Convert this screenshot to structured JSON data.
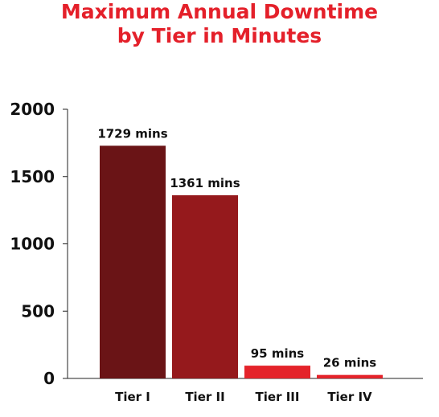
{
  "chart_data": {
    "type": "bar",
    "title_lines": [
      "Maximum Annual Downtime",
      "by Tier in Minutes"
    ],
    "categories": [
      "Tier I",
      "Tier II",
      "Tier III",
      "Tier IV"
    ],
    "values": [
      1729,
      1361,
      95,
      26
    ],
    "data_labels": [
      "1729 mins",
      "1361 mins",
      "95 mins",
      "26 mins"
    ],
    "bar_colors": [
      "#6a1416",
      "#95191c",
      "#e4232a",
      "#e4232a"
    ],
    "title_color": "#e4202a",
    "ylim": [
      0,
      2000
    ],
    "y_ticks": [
      0,
      500,
      1000,
      1500,
      2000
    ],
    "y_tick_labels": [
      "0",
      "500",
      "1000",
      "1500",
      "2000"
    ],
    "xlabel": "",
    "ylabel": "",
    "grid": false,
    "legend": "none"
  }
}
